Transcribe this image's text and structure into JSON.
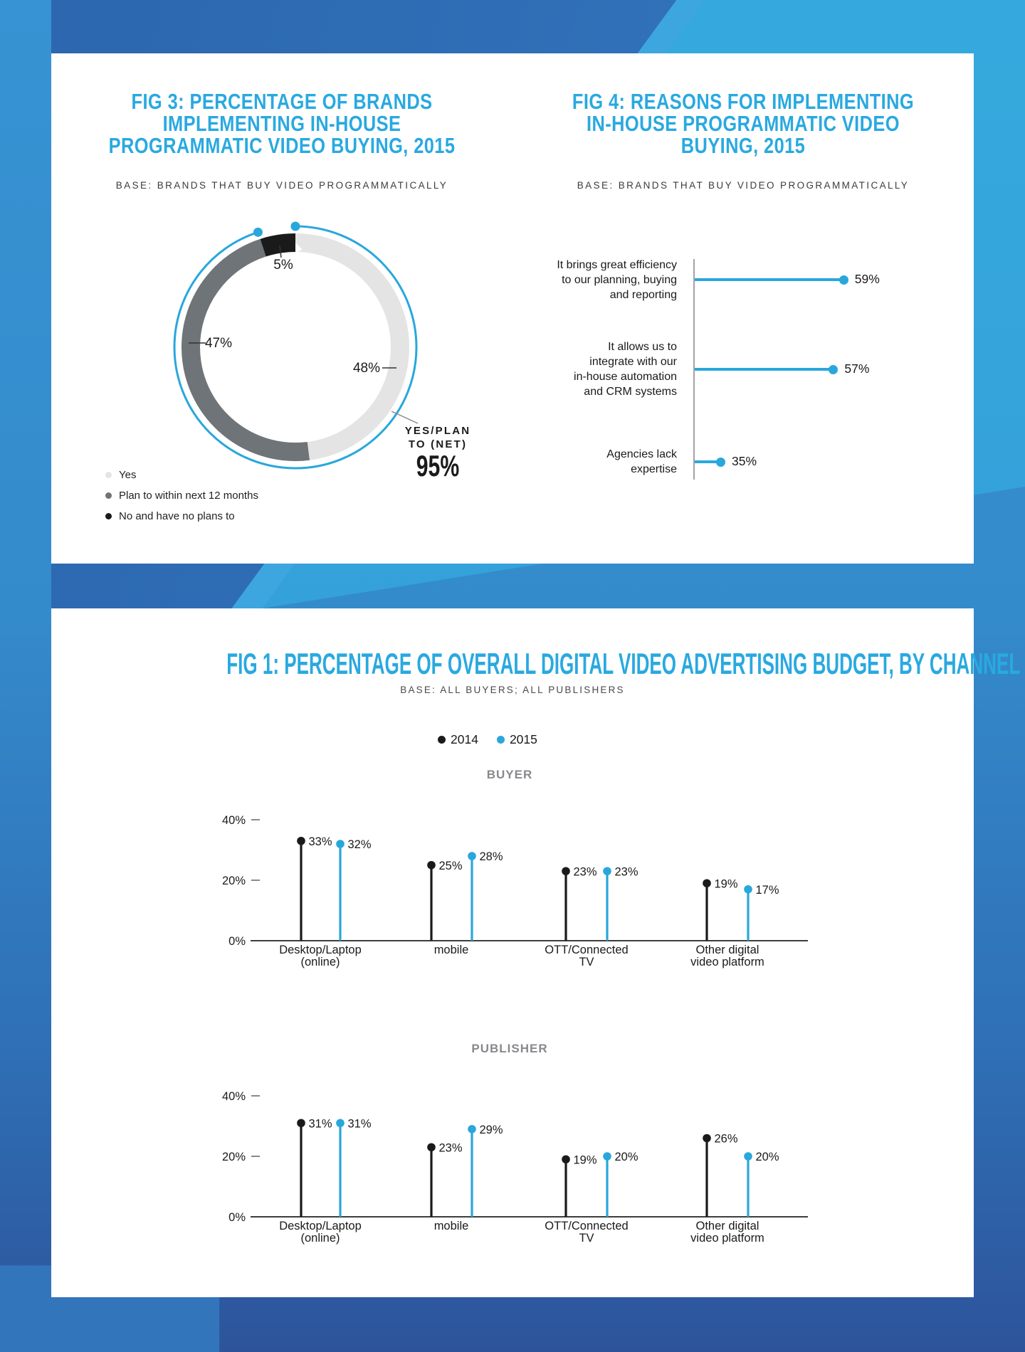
{
  "colors": {
    "accent_blue": "#29a7dc",
    "title_blue": "#29a9e0",
    "black": "#1a1a1a",
    "segment_light_gray": "#e4e4e4",
    "segment_dark_gray": "#6e7477",
    "panel_label_gray": "#87898c"
  },
  "fig3": {
    "heading": [
      "FIG 3: PERCENTAGE OF BRANDS",
      "IMPLEMENTING IN-HOUSE",
      "PROGRAMMATIC VIDEO BUYING, 2015"
    ],
    "base": "BASE: BRANDS THAT BUY VIDEO PROGRAMMATICALLY",
    "chart_data": {
      "type": "pie",
      "subtype": "donut",
      "segments": [
        {
          "label": "Yes",
          "value": 48,
          "data_label": "48%",
          "color": "#e4e4e4"
        },
        {
          "label": "Plan to within next 12 months",
          "value": 47,
          "data_label": "47%",
          "color": "#6e7477"
        },
        {
          "label": "No and have no plans to",
          "value": 5,
          "data_label": "5%",
          "color": "#1a1a1a"
        }
      ],
      "net_annotation": {
        "lines": [
          "YES/PLAN",
          "TO (NET)"
        ],
        "value": "95%",
        "arc_coverage_percent": 95
      }
    }
  },
  "fig4": {
    "heading": [
      "FIG 4: REASONS FOR IMPLEMENTING",
      "IN-HOUSE PROGRAMMATIC VIDEO",
      "BUYING, 2015"
    ],
    "base": "BASE: BRANDS THAT BUY VIDEO PROGRAMMATICALLY",
    "chart_data": {
      "type": "bar",
      "orientation": "horizontal",
      "items": [
        {
          "label_lines": [
            "It brings great efficiency",
            "to our planning, buying",
            "and reporting"
          ],
          "value": 59,
          "data_label": "59%"
        },
        {
          "label_lines": [
            "It allows us to",
            "integrate with our",
            "in-house automation",
            "and CRM systems"
          ],
          "value": 57,
          "data_label": "57%"
        },
        {
          "label_lines": [
            "Agencies lack",
            "expertise"
          ],
          "value": 35,
          "data_label": "35%"
        }
      ]
    }
  },
  "fig1": {
    "heading": "FIG 1: PERCENTAGE OF OVERALL DIGITAL VIDEO ADVERTISING BUDGET, BY CHANNEL",
    "base": "BASE: ALL BUYERS; ALL PUBLISHERS",
    "legend": [
      {
        "label": "2014",
        "color": "#1a1a1a"
      },
      {
        "label": "2015",
        "color": "#29a7dc"
      }
    ],
    "chart_data": [
      {
        "type": "lollipop",
        "panel": "BUYER",
        "ylim": [
          0,
          40
        ],
        "yticks": [
          "40%",
          "20%",
          "0%"
        ],
        "categories": [
          [
            "Desktop/Laptop",
            "(online)"
          ],
          [
            "mobile"
          ],
          [
            "OTT/Connected",
            "TV"
          ],
          [
            "Other digital",
            "video platform"
          ]
        ],
        "series": [
          {
            "name": "2014",
            "values": [
              33,
              25,
              23,
              19
            ]
          },
          {
            "name": "2015",
            "values": [
              32,
              28,
              23,
              17
            ]
          }
        ]
      },
      {
        "type": "lollipop",
        "panel": "PUBLISHER",
        "ylim": [
          0,
          40
        ],
        "yticks": [
          "40%",
          "20%",
          "0%"
        ],
        "categories": [
          [
            "Desktop/Laptop",
            "(online)"
          ],
          [
            "mobile"
          ],
          [
            "OTT/Connected",
            "TV"
          ],
          [
            "Other digital",
            "video platform"
          ]
        ],
        "series": [
          {
            "name": "2014",
            "values": [
              31,
              23,
              19,
              26
            ]
          },
          {
            "name": "2015",
            "values": [
              31,
              29,
              20,
              20
            ]
          }
        ]
      }
    ]
  }
}
